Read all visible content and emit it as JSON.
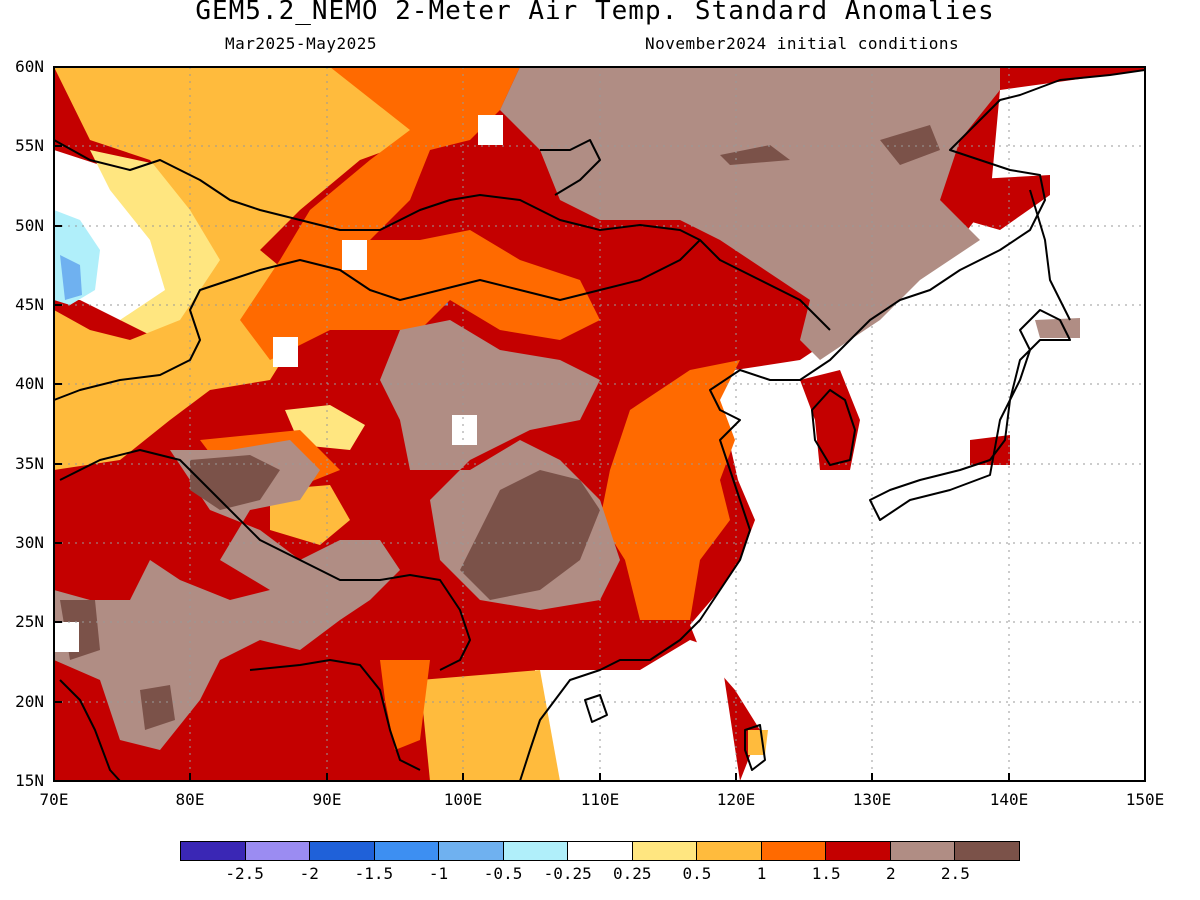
{
  "title": "GEM5.2_NEMO 2-Meter Air Temp. Standard Anomalies",
  "subtitle_left": "Mar2025-May2025",
  "subtitle_right": "November2024 initial conditions",
  "lat_labels": [
    "60N",
    "55N",
    "50N",
    "45N",
    "40N",
    "35N",
    "30N",
    "25N",
    "20N",
    "15N"
  ],
  "lon_labels": [
    "70E",
    "80E",
    "90E",
    "100E",
    "110E",
    "120E",
    "130E",
    "140E",
    "150E"
  ],
  "colorbar": {
    "colors": [
      "#3a27b5",
      "#9b8cf2",
      "#1f61d9",
      "#3d8ff2",
      "#6fb1f0",
      "#b0effa",
      "#ffffff",
      "#ffe680",
      "#ffbb3d",
      "#ff6a00",
      "#c40000",
      "#b08d84",
      "#7b5249"
    ],
    "ticks": [
      "-2.5",
      "-2",
      "-1.5",
      "-1",
      "-0.5",
      "-0.25",
      "0.25",
      "0.5",
      "1",
      "1.5",
      "2",
      "2.5"
    ]
  }
}
